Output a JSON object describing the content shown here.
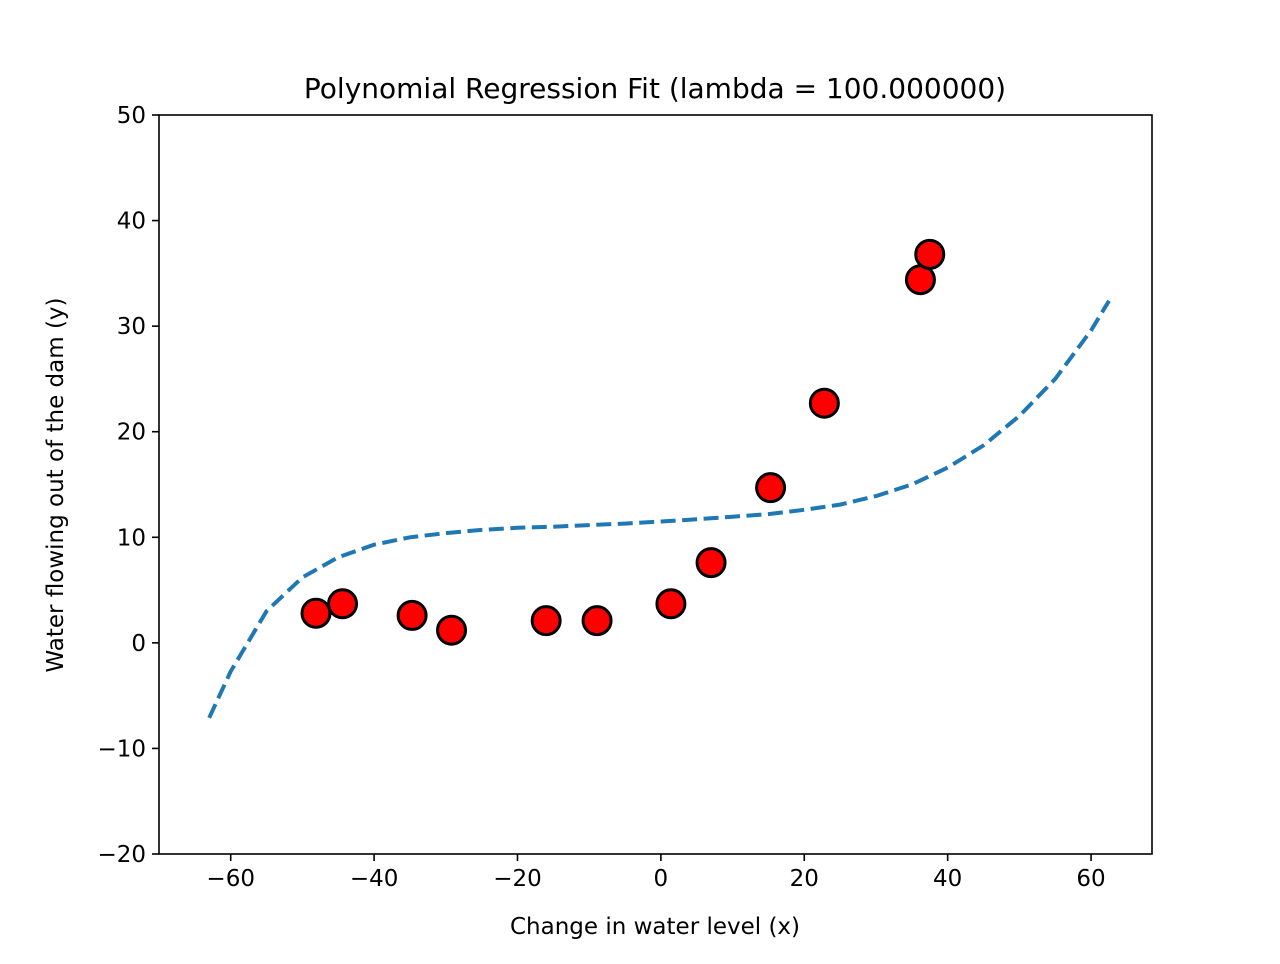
{
  "chart_data": {
    "type": "scatter",
    "title": "Polynomial Regression Fit (lambda = 100.000000)",
    "xlabel": "Change in water level (x)",
    "ylabel": "Water flowing out of the dam (y)",
    "xlim": [
      -70,
      68.5
    ],
    "ylim": [
      -20,
      50
    ],
    "xticks": [
      -60,
      -40,
      -20,
      0,
      20,
      40,
      60
    ],
    "xtick_labels": [
      "−60",
      "−40",
      "−20",
      "0",
      "20",
      "40",
      "60"
    ],
    "yticks": [
      -20,
      -10,
      0,
      10,
      20,
      30,
      40,
      50
    ],
    "ytick_labels": [
      "−20",
      "−10",
      "0",
      "10",
      "20",
      "30",
      "40",
      "50"
    ],
    "grid": false,
    "legend": "none",
    "series": [
      {
        "kind": "scatter",
        "color": "#ff0000",
        "edge_color": "#000000",
        "x": [
          -48.1,
          -44.4,
          -34.7,
          -29.2,
          -16.0,
          -8.9,
          1.4,
          7.0,
          15.3,
          22.8,
          36.2,
          37.5
        ],
        "y": [
          2.8,
          3.7,
          2.6,
          1.2,
          2.1,
          2.1,
          3.7,
          7.6,
          14.7,
          22.7,
          34.4,
          36.8
        ]
      },
      {
        "kind": "line",
        "style": "dashed",
        "color": "#1f77b4",
        "x": [
          -63,
          -60,
          -55,
          -50,
          -45,
          -40,
          -35,
          -30,
          -25,
          -20,
          -15,
          -10,
          -5,
          0,
          5,
          10,
          15,
          20,
          25,
          30,
          35,
          40,
          45,
          50,
          55,
          60,
          62.5
        ],
        "y": [
          -7.1,
          -2.7,
          3.0,
          6.2,
          8.1,
          9.3,
          10.0,
          10.4,
          10.7,
          10.9,
          11.0,
          11.15,
          11.3,
          11.5,
          11.7,
          11.95,
          12.2,
          12.6,
          13.1,
          13.9,
          15.0,
          16.6,
          18.7,
          21.5,
          25.0,
          29.6,
          32.4
        ]
      }
    ]
  }
}
